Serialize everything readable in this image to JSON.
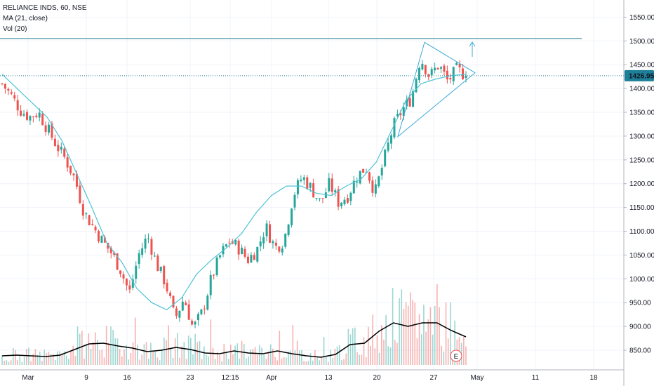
{
  "legend": {
    "symbol": "RELIANCE INDS, 60, NSE",
    "ma": "MA (21, close)",
    "vol": "Vol (20)"
  },
  "price_label": "1426.95",
  "colors": {
    "up": "#26a69a",
    "down": "#ef5350",
    "ma": "#4fc3d5",
    "pattern": "#3aa8d8",
    "price_line": "#1e7f98",
    "vol_ma": "#000000",
    "grid": "#f0f3fa",
    "event": "#ef5350"
  },
  "event_marker": "E",
  "chart_data": {
    "type": "candlestick",
    "title": "RELIANCE INDS, 60, NSE",
    "ylim": [
      810,
      1560
    ],
    "y_ticks": [
      850,
      900,
      950,
      1000,
      1050,
      1100,
      1150,
      1200,
      1250,
      1300,
      1350,
      1400,
      1450,
      1500,
      1550
    ],
    "y_tick_labels": [
      "850.00",
      "900.00",
      "950.00",
      "1000.00",
      "1050.00",
      "1100.00",
      "1150.00",
      "1200.00",
      "1250.00",
      "1300.00",
      "1350.00",
      "1400.00",
      "1450.00",
      "1500.00",
      "1550.00"
    ],
    "x_tick_labels": [
      "Mar",
      "9",
      "16",
      "23",
      "12:15",
      "Apr",
      "13",
      "20",
      "27",
      "May",
      "11",
      "18"
    ],
    "last_price": 1426.95,
    "horizontal_line": 1505,
    "triangle_pattern": [
      [
        1497,
        1433
      ],
      [
        1299,
        1433
      ]
    ],
    "close_path": [
      1410,
      1385,
      1355,
      1340,
      1350,
      1315,
      1280,
      1250,
      1210,
      1140,
      1110,
      1080,
      1055,
      1020,
      970,
      1050,
      1090,
      1030,
      990,
      915,
      960,
      895,
      930,
      1000,
      1050,
      1080,
      1065,
      1040,
      1060,
      1110,
      1065,
      1080,
      1175,
      1215,
      1190,
      1160,
      1200,
      1160,
      1175,
      1215,
      1235,
      1180,
      1250,
      1320,
      1355,
      1380,
      1465,
      1425,
      1450,
      1415,
      1440,
      1427
    ],
    "ma_path": [
      1430,
      1400,
      1370,
      1340,
      1290,
      1220,
      1150,
      1075,
      1035,
      980,
      950,
      935,
      960,
      1010,
      1040,
      1065,
      1095,
      1140,
      1175,
      1195,
      1195,
      1180,
      1175,
      1195,
      1210,
      1245,
      1310,
      1375,
      1410,
      1420,
      1427,
      1430
    ],
    "volume_ma": [
      13,
      14,
      13,
      12,
      14,
      22,
      30,
      31,
      27,
      24,
      19,
      21,
      25,
      22,
      17,
      16,
      20,
      17,
      16,
      20,
      16,
      13,
      11,
      15,
      29,
      31,
      48,
      60,
      55,
      60,
      60,
      49,
      40
    ]
  }
}
